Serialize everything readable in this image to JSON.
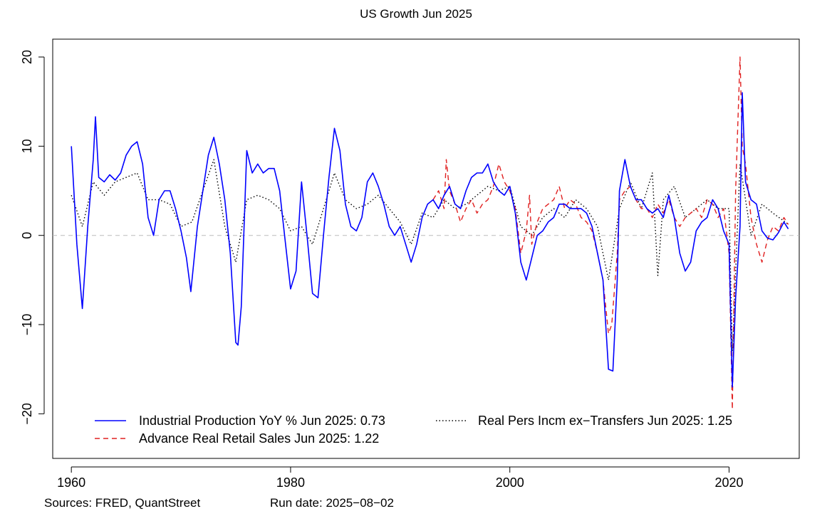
{
  "chart_data": {
    "type": "line",
    "title": "US Growth Jun 2025",
    "xlabel": "",
    "ylabel": "",
    "xlim": [
      1958.3,
      2026.4
    ],
    "ylim": [
      -25,
      22
    ],
    "x_ticks": [
      {
        "value": 1960,
        "label": "1960"
      },
      {
        "value": 1980,
        "label": "1980"
      },
      {
        "value": 2000,
        "label": "2000"
      },
      {
        "value": 2020,
        "label": "2020"
      }
    ],
    "y_ticks": [
      {
        "value": 20,
        "label": "20"
      },
      {
        "value": 10,
        "label": "10"
      },
      {
        "value": 0,
        "label": "0"
      },
      {
        "value": -10,
        "label": "−10"
      },
      {
        "value": -20,
        "label": "−20"
      }
    ],
    "reference_line": {
      "y": 0,
      "style": "dashed",
      "color": "#bbbbbb"
    },
    "legend": [
      {
        "series": 0,
        "label": "Industrial Production YoY % Jun 2025: 0.73"
      },
      {
        "series": 2,
        "label": "Real Pers Incm ex−Transfers Jun 2025: 1.25"
      },
      {
        "series": 1,
        "label": "Advance Real Retail Sales Jun 2025: 1.22"
      }
    ],
    "series": [
      {
        "name": "Industrial Production YoY % Jun 2025: 0.73",
        "color": "#0000ff",
        "style": "solid",
        "x": [
          1960.0,
          1960.5,
          1961.0,
          1961.5,
          1962.0,
          1962.2,
          1962.5,
          1963.0,
          1963.5,
          1964.0,
          1964.5,
          1965.0,
          1965.5,
          1966.0,
          1966.5,
          1967.0,
          1967.5,
          1968.0,
          1968.5,
          1969.0,
          1969.5,
          1970.0,
          1970.5,
          1970.9,
          1971.5,
          1972.0,
          1972.5,
          1973.0,
          1973.5,
          1974.0,
          1974.5,
          1975.0,
          1975.2,
          1975.5,
          1976.0,
          1976.5,
          1977.0,
          1977.5,
          1978.0,
          1978.5,
          1979.0,
          1979.5,
          1980.0,
          1980.5,
          1981.0,
          1981.5,
          1982.0,
          1982.5,
          1983.0,
          1983.5,
          1984.0,
          1984.5,
          1985.0,
          1985.5,
          1986.0,
          1986.5,
          1987.0,
          1987.5,
          1988.0,
          1988.5,
          1989.0,
          1989.5,
          1990.0,
          1990.5,
          1991.0,
          1991.5,
          1992.0,
          1992.5,
          1993.0,
          1993.5,
          1994.0,
          1994.5,
          1995.0,
          1995.5,
          1996.0,
          1996.5,
          1997.0,
          1997.5,
          1998.0,
          1998.5,
          1999.0,
          1999.5,
          2000.0,
          2000.5,
          2001.0,
          2001.5,
          2001.9,
          2002.5,
          2003.0,
          2003.5,
          2004.0,
          2004.5,
          2005.0,
          2005.5,
          2006.0,
          2006.5,
          2007.0,
          2007.5,
          2008.0,
          2008.5,
          2009.0,
          2009.4,
          2009.8,
          2010.0,
          2010.5,
          2011.0,
          2011.5,
          2012.0,
          2012.5,
          2013.0,
          2013.5,
          2014.0,
          2014.5,
          2015.0,
          2015.5,
          2016.0,
          2016.5,
          2017.0,
          2017.5,
          2018.0,
          2018.5,
          2019.0,
          2019.5,
          2020.0,
          2020.3,
          2020.6,
          2021.0,
          2021.2,
          2021.5,
          2022.0,
          2022.5,
          2023.0,
          2023.5,
          2024.0,
          2024.5,
          2025.0,
          2025.4
        ],
        "y": [
          10.0,
          -1.0,
          -8.2,
          1.0,
          8.5,
          13.3,
          6.5,
          6.0,
          6.8,
          6.2,
          7.0,
          9.0,
          10.0,
          10.5,
          8.0,
          2.0,
          0.0,
          4.0,
          5.0,
          5.0,
          3.0,
          0.5,
          -2.5,
          -6.3,
          1.0,
          5.0,
          9.0,
          11.0,
          8.0,
          4.0,
          -2.0,
          -12.0,
          -12.3,
          -8.0,
          9.5,
          7.0,
          8.0,
          7.0,
          7.5,
          7.5,
          5.0,
          -0.5,
          -6.0,
          -4.0,
          6.0,
          0.0,
          -6.5,
          -7.0,
          0.0,
          6.5,
          12.0,
          9.5,
          3.5,
          1.0,
          0.5,
          2.0,
          6.0,
          7.0,
          5.5,
          3.5,
          1.0,
          0.0,
          1.0,
          -1.0,
          -3.0,
          -1.0,
          2.0,
          3.5,
          4.0,
          3.0,
          4.5,
          5.5,
          3.5,
          3.0,
          5.0,
          6.5,
          7.0,
          7.0,
          8.0,
          6.0,
          5.0,
          4.5,
          5.5,
          2.5,
          -3.0,
          -5.0,
          -3.0,
          0.0,
          0.5,
          1.5,
          2.0,
          3.5,
          3.5,
          3.0,
          3.0,
          3.0,
          2.5,
          1.0,
          -2.0,
          -5.0,
          -15.0,
          -15.2,
          -5.0,
          5.0,
          8.5,
          5.5,
          4.0,
          4.0,
          3.0,
          2.5,
          3.0,
          2.0,
          4.5,
          2.0,
          -2.0,
          -4.0,
          -3.0,
          0.5,
          1.5,
          2.0,
          4.0,
          3.0,
          0.5,
          -1.0,
          -17.0,
          -7.0,
          1.0,
          16.0,
          6.0,
          4.0,
          3.5,
          0.5,
          -0.3,
          -0.5,
          0.3,
          1.5,
          0.73
        ]
      },
      {
        "name": "Advance Real Retail Sales Jun 2025: 1.22",
        "color": "#e02020",
        "style": "dashed",
        "x": [
          1993.0,
          1993.5,
          1994.0,
          1994.2,
          1994.5,
          1995.0,
          1995.5,
          1996.0,
          1996.5,
          1997.0,
          1997.5,
          1998.0,
          1998.5,
          1999.0,
          1999.5,
          2000.0,
          2000.5,
          2001.0,
          2001.5,
          2001.8,
          2002.0,
          2002.5,
          2003.0,
          2003.5,
          2004.0,
          2004.5,
          2005.0,
          2005.5,
          2006.0,
          2006.5,
          2007.0,
          2007.5,
          2008.0,
          2008.5,
          2009.0,
          2009.3,
          2009.8,
          2010.0,
          2010.5,
          2011.0,
          2011.5,
          2012.0,
          2012.5,
          2013.0,
          2013.5,
          2014.0,
          2014.5,
          2015.0,
          2015.5,
          2016.0,
          2016.5,
          2017.0,
          2017.5,
          2018.0,
          2018.5,
          2019.0,
          2019.5,
          2020.0,
          2020.3,
          2020.6,
          2021.0,
          2021.2,
          2021.5,
          2022.0,
          2022.5,
          2023.0,
          2023.5,
          2024.0,
          2024.5,
          2025.0,
          2025.4
        ],
        "y": [
          4.0,
          5.0,
          3.0,
          8.5,
          5.0,
          3.5,
          1.5,
          3.0,
          4.0,
          2.5,
          3.5,
          4.0,
          5.5,
          8.0,
          6.0,
          5.0,
          3.0,
          -2.0,
          0.5,
          4.5,
          -1.0,
          1.5,
          3.0,
          3.5,
          4.0,
          5.5,
          3.0,
          4.0,
          3.5,
          2.0,
          1.5,
          0.5,
          -2.0,
          -5.0,
          -11.0,
          -10.0,
          -2.0,
          4.0,
          5.0,
          5.5,
          4.0,
          3.0,
          3.0,
          2.0,
          3.5,
          2.5,
          4.0,
          2.0,
          1.0,
          2.0,
          2.5,
          3.0,
          2.0,
          4.0,
          3.5,
          2.0,
          3.0,
          -2.0,
          -19.5,
          5.0,
          20.0,
          10.0,
          8.0,
          2.0,
          -1.0,
          -3.0,
          -0.5,
          1.0,
          0.5,
          2.0,
          1.22
        ]
      },
      {
        "name": "Real Pers Incm ex−Transfers Jun 2025: 1.25",
        "color": "#000000",
        "style": "dotted",
        "x": [
          1960.0,
          1961.0,
          1962.0,
          1963.0,
          1964.0,
          1965.0,
          1966.0,
          1967.0,
          1968.0,
          1969.0,
          1970.0,
          1971.0,
          1972.0,
          1973.0,
          1974.0,
          1975.0,
          1976.0,
          1977.0,
          1978.0,
          1979.0,
          1980.0,
          1981.0,
          1982.0,
          1983.0,
          1984.0,
          1985.0,
          1986.0,
          1987.0,
          1988.0,
          1989.0,
          1990.0,
          1991.0,
          1992.0,
          1993.0,
          1994.0,
          1995.0,
          1996.0,
          1997.0,
          1998.0,
          1999.0,
          2000.0,
          2001.0,
          2002.0,
          2003.0,
          2004.0,
          2005.0,
          2006.0,
          2007.0,
          2008.0,
          2009.0,
          2010.0,
          2011.0,
          2012.0,
          2013.0,
          2013.5,
          2014.0,
          2015.0,
          2016.0,
          2017.0,
          2018.0,
          2019.0,
          2020.0,
          2020.3,
          2021.0,
          2022.0,
          2023.0,
          2024.0,
          2025.4
        ],
        "y": [
          4.5,
          1.0,
          6.0,
          4.5,
          6.0,
          6.5,
          7.0,
          4.0,
          4.0,
          3.5,
          1.0,
          1.5,
          5.0,
          8.5,
          1.0,
          -3.0,
          4.0,
          4.5,
          4.0,
          3.0,
          0.5,
          1.0,
          -1.0,
          3.0,
          7.0,
          4.0,
          3.0,
          3.5,
          4.5,
          3.0,
          1.5,
          -1.0,
          2.5,
          2.0,
          4.0,
          3.0,
          3.5,
          4.5,
          5.5,
          5.0,
          5.5,
          1.0,
          0.0,
          2.0,
          3.0,
          2.0,
          4.0,
          3.0,
          1.0,
          -5.0,
          3.0,
          6.0,
          3.0,
          7.0,
          -4.5,
          4.0,
          5.5,
          2.0,
          3.0,
          4.0,
          3.0,
          3.0,
          -13.0,
          8.0,
          0.0,
          3.5,
          2.5,
          1.25
        ]
      }
    ]
  },
  "footer": {
    "sources": "Sources: FRED, QuantStreet",
    "run_date": "Run date: 2025−08−02"
  }
}
